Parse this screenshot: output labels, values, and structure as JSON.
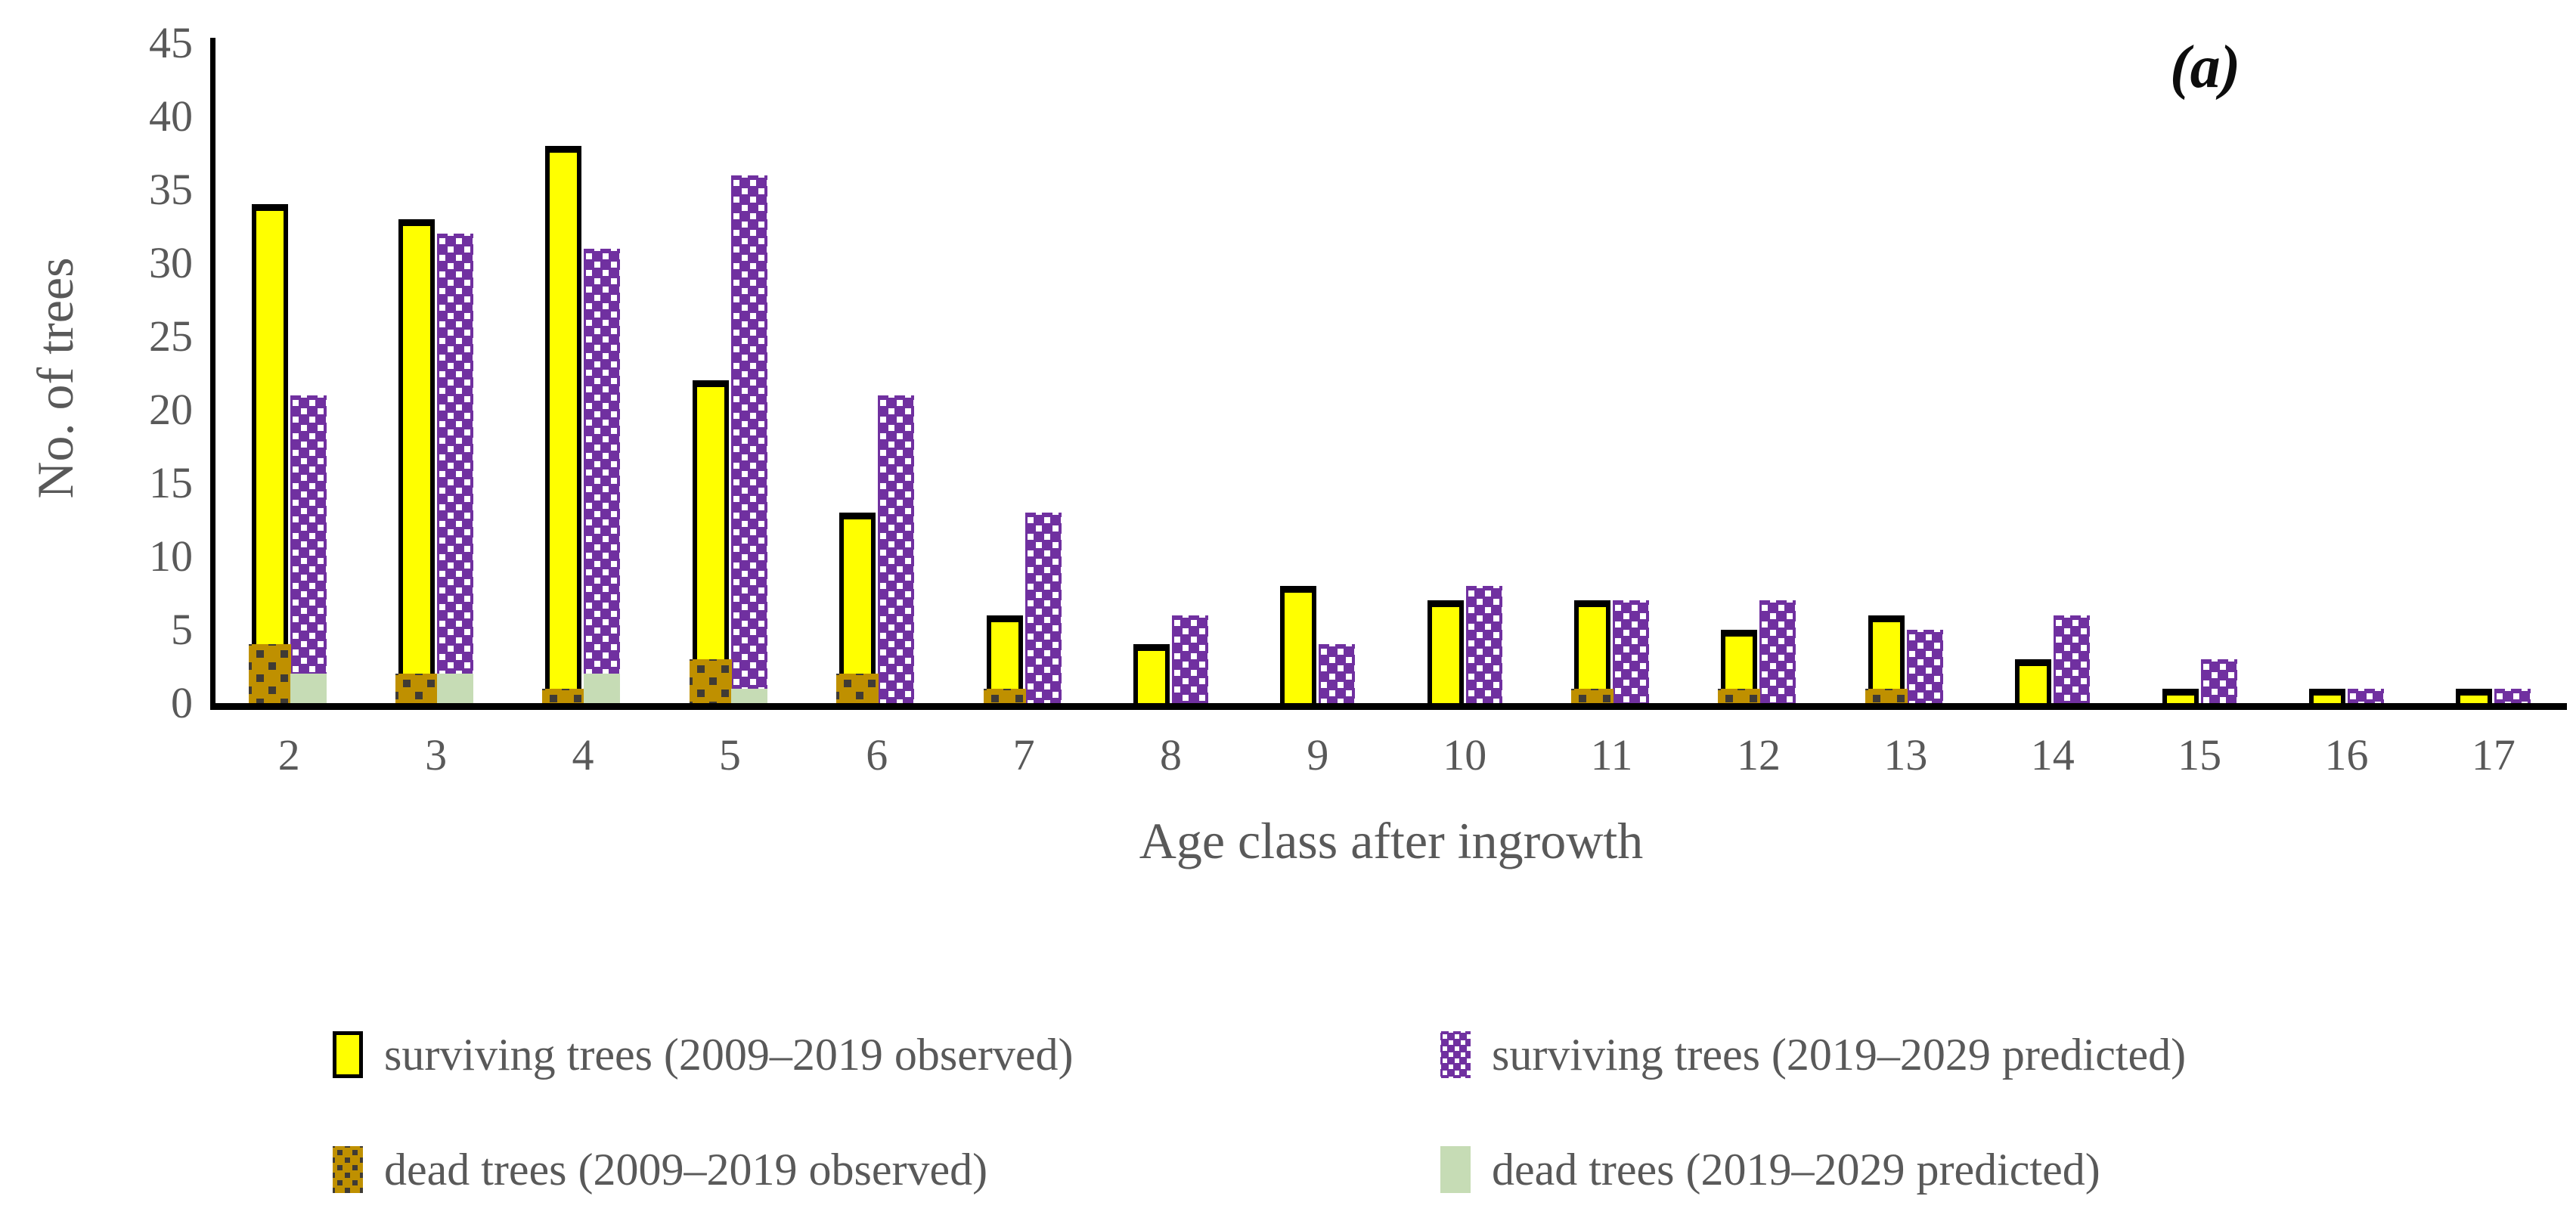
{
  "figure_label": "(a)",
  "colors": {
    "surviving_observed": "#FFFF00",
    "surviving_predicted": "#7030A0",
    "dead_observed": "#BF9000",
    "dead_predicted": "#C6DCB5",
    "axis_text": "#595959",
    "axis_line": "#000000"
  },
  "chart_data": {
    "type": "bar",
    "title": "",
    "xlabel": "Age class after ingrowth",
    "ylabel": "No. of trees",
    "categories": [
      "2",
      "3",
      "4",
      "5",
      "6",
      "7",
      "8",
      "9",
      "10",
      "11",
      "12",
      "13",
      "14",
      "15",
      "16",
      "17"
    ],
    "yticks": [
      0,
      5,
      10,
      15,
      20,
      25,
      30,
      35,
      40,
      45
    ],
    "ylim": [
      0,
      45
    ],
    "grid": false,
    "legend_position": "bottom",
    "series": [
      {
        "name": "surviving trees (2009–2019 observed)",
        "style": "yellow-solid-black-border",
        "color": "#FFFF00",
        "values": [
          34,
          33,
          38,
          22,
          13,
          6,
          4,
          8,
          7,
          7,
          5,
          6,
          3,
          1,
          1,
          1
        ]
      },
      {
        "name": "surviving trees (2019–2029 predicted)",
        "style": "purple-white-dots",
        "color": "#7030A0",
        "values": [
          21,
          32,
          31,
          36,
          21,
          13,
          6,
          4,
          8,
          7,
          7,
          5,
          6,
          3,
          1,
          1
        ]
      },
      {
        "name": "dead trees (2009–2019 observed)",
        "style": "brown-dark-dots",
        "color": "#BF9000",
        "values": [
          4,
          2,
          1,
          3,
          2,
          1,
          0,
          0,
          0,
          1,
          1,
          1,
          0,
          0,
          0,
          0
        ]
      },
      {
        "name": "dead trees (2019–2029 predicted)",
        "style": "green-solid",
        "color": "#C6DCB5",
        "values": [
          2,
          2,
          2,
          1,
          0,
          0,
          0,
          0,
          0,
          0,
          0,
          0,
          0,
          0,
          0,
          0
        ]
      }
    ]
  }
}
